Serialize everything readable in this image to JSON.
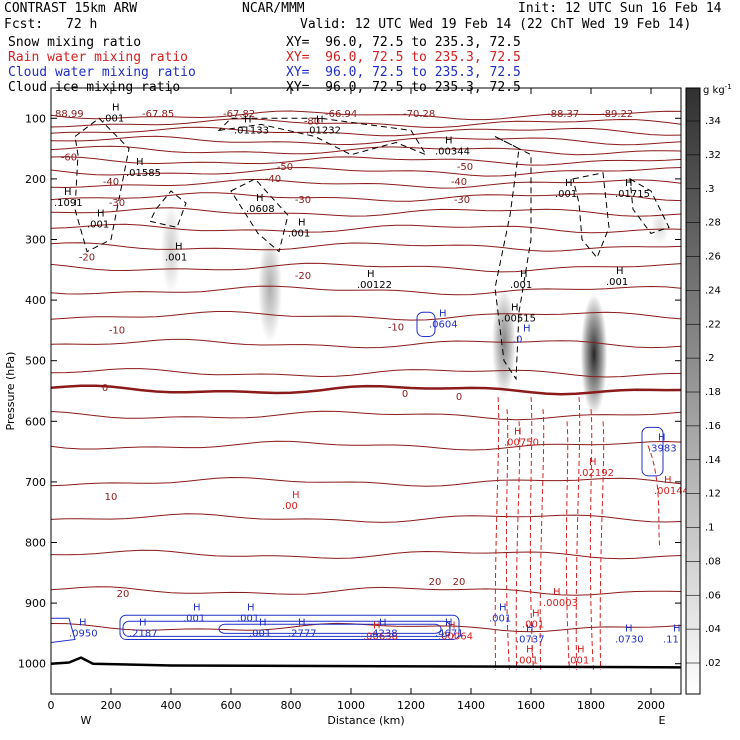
{
  "header": {
    "model": "CONTRAST 15km ARW",
    "org": "NCAR/MMM",
    "init": "Init: 12 UTC Sun 16 Feb 14",
    "fcst_label": "Fcst:",
    "fcst_value": "72 h",
    "valid": "Valid: 12 UTC Wed 19 Feb 14 (22 ChT Wed 19 Feb 14)",
    "fields": [
      {
        "name": "Snow mixing ratio",
        "xy": "XY=  96.0, 72.5 to 235.3, 72.5",
        "color": "#000000"
      },
      {
        "name": "Rain water mixing ratio",
        "xy": "XY=  96.0, 72.5 to 235.3, 72.5",
        "color": "#d42020"
      },
      {
        "name": "Cloud water mixing ratio",
        "xy": "XY=  96.0, 72.5 to 235.3, 72.5",
        "color": "#2030c8"
      },
      {
        "name": "Cloud ice mixing ratio",
        "xy": "XY=  96.0, 72.5 to 235.3, 72.5",
        "color": "#000000"
      }
    ]
  },
  "colors": {
    "temp": "#8b1a1a",
    "rain": "#d42020",
    "cloud": "#2030c8",
    "snow": "#000000"
  },
  "chart_data": {
    "type": "cross-section",
    "xlabel": "Distance (km)",
    "ylabel": "Pressure (hPa)",
    "xlim": [
      0,
      2100
    ],
    "ylim": [
      1050,
      50
    ],
    "xticks": [
      0,
      200,
      400,
      600,
      800,
      1000,
      1200,
      1400,
      1600,
      1800,
      2000
    ],
    "yticks": [
      100,
      200,
      300,
      400,
      500,
      600,
      700,
      800,
      900,
      1000
    ],
    "west_label": "W",
    "east_label": "E",
    "colorbar": {
      "unit": "g kg",
      "unit_exp": "-1",
      "ticks": [
        ".34",
        ".32",
        ".3",
        ".28",
        ".26",
        ".24",
        ".22",
        ".2",
        ".18",
        ".16",
        ".14",
        ".12",
        ".1",
        ".08",
        ".06",
        ".04",
        ".02"
      ]
    },
    "temperature_isotherm_labels": [
      {
        "x": 60,
        "p": 165,
        "text": "-60"
      },
      {
        "x": 200,
        "p": 205,
        "text": "-40"
      },
      {
        "x": 740,
        "p": 200,
        "text": "-40"
      },
      {
        "x": 1360,
        "p": 205,
        "text": "-40"
      },
      {
        "x": 780,
        "p": 180,
        "text": "-50"
      },
      {
        "x": 1380,
        "p": 180,
        "text": "-50"
      },
      {
        "x": 870,
        "p": 105,
        "text": "-80"
      },
      {
        "x": 220,
        "p": 240,
        "text": "-30"
      },
      {
        "x": 840,
        "p": 235,
        "text": "-30"
      },
      {
        "x": 1370,
        "p": 235,
        "text": "-30"
      },
      {
        "x": 120,
        "p": 330,
        "text": "-20"
      },
      {
        "x": 840,
        "p": 360,
        "text": "-20"
      },
      {
        "x": 220,
        "p": 450,
        "text": "-10"
      },
      {
        "x": 1150,
        "p": 445,
        "text": "-10"
      },
      {
        "x": 180,
        "p": 545,
        "text": "0"
      },
      {
        "x": 1180,
        "p": 555,
        "text": "0"
      },
      {
        "x": 1360,
        "p": 560,
        "text": "0"
      },
      {
        "x": 200,
        "p": 725,
        "text": "10"
      },
      {
        "x": 240,
        "p": 885,
        "text": "20"
      },
      {
        "x": 1280,
        "p": 865,
        "text": "20"
      },
      {
        "x": 1360,
        "p": 865,
        "text": "20"
      }
    ],
    "temperature_top_labels": [
      "88.99",
      "-67.85",
      "-67.82",
      "-66.94",
      "-70.28",
      "-88.37",
      "-89.22"
    ],
    "snow_extrema": [
      {
        "x": 170,
        "p": 105,
        "text": ".001"
      },
      {
        "x": 250,
        "p": 195,
        "text": ".01585"
      },
      {
        "x": 610,
        "p": 125,
        "text": ".01133"
      },
      {
        "x": 850,
        "p": 125,
        "text": ".01232"
      },
      {
        "x": 1280,
        "p": 160,
        "text": ".00344"
      },
      {
        "x": 1680,
        "p": 230,
        "text": ".001"
      },
      {
        "x": 1880,
        "p": 230,
        "text": ".01715"
      },
      {
        "x": 650,
        "p": 255,
        "text": ".0608"
      },
      {
        "x": 1020,
        "p": 380,
        "text": ".00122"
      },
      {
        "x": 1500,
        "p": 435,
        "text": ".00515"
      },
      {
        "x": 1850,
        "p": 375,
        "text": ".001"
      },
      {
        "x": 1530,
        "p": 380,
        "text": ".001"
      },
      {
        "x": 120,
        "p": 280,
        "text": ".001"
      },
      {
        "x": 380,
        "p": 335,
        "text": ".001"
      },
      {
        "x": 790,
        "p": 295,
        "text": ".001"
      },
      {
        "x": 10,
        "p": 245,
        "text": ".1091"
      }
    ],
    "rain_extrema": [
      {
        "x": 1510,
        "p": 640,
        "text": ".00750"
      },
      {
        "x": 1760,
        "p": 690,
        "text": ".02192"
      },
      {
        "x": 2010,
        "p": 720,
        "text": ".00144"
      },
      {
        "x": 770,
        "p": 745,
        "text": ".00"
      },
      {
        "x": 1040,
        "p": 960,
        "text": ".00638"
      },
      {
        "x": 1290,
        "p": 960,
        "text": ".00064"
      },
      {
        "x": 1640,
        "p": 905,
        "text": ".00003"
      },
      {
        "x": 1570,
        "p": 940,
        "text": ".001"
      },
      {
        "x": 1550,
        "p": 1000,
        "text": ".001"
      },
      {
        "x": 1720,
        "p": 1000,
        "text": ".001"
      }
    ],
    "cloud_extrema": [
      {
        "x": 1260,
        "p": 445,
        "text": ".0604"
      },
      {
        "x": 1540,
        "p": 470,
        "text": ".0"
      },
      {
        "x": 1990,
        "p": 650,
        "text": ".3983"
      },
      {
        "x": 60,
        "p": 955,
        "text": ".0950"
      },
      {
        "x": 260,
        "p": 955,
        "text": ".2187"
      },
      {
        "x": 440,
        "p": 930,
        "text": ".001"
      },
      {
        "x": 620,
        "p": 930,
        "text": ".001"
      },
      {
        "x": 660,
        "p": 955,
        "text": ".001"
      },
      {
        "x": 790,
        "p": 955,
        "text": ".2777"
      },
      {
        "x": 1060,
        "p": 955,
        "text": ".4238"
      },
      {
        "x": 1280,
        "p": 955,
        "text": ".4671"
      },
      {
        "x": 1460,
        "p": 930,
        "text": ".001"
      },
      {
        "x": 1550,
        "p": 965,
        "text": ".0737"
      },
      {
        "x": 1880,
        "p": 965,
        "text": ".0730"
      },
      {
        "x": 2040,
        "p": 965,
        "text": ".11"
      }
    ],
    "shaded_regions": [
      {
        "x": 400,
        "p_top": 240,
        "p_bot": 390,
        "max": 0.06
      },
      {
        "x": 730,
        "p_top": 290,
        "p_bot": 470,
        "max": 0.1
      },
      {
        "x": 1510,
        "p_top": 380,
        "p_bot": 560,
        "max": 0.15
      },
      {
        "x": 1810,
        "p_top": 390,
        "p_bot": 590,
        "max": 0.3
      },
      {
        "x": 2030,
        "p_top": 250,
        "p_bot": 310,
        "max": 0.04
      }
    ]
  }
}
